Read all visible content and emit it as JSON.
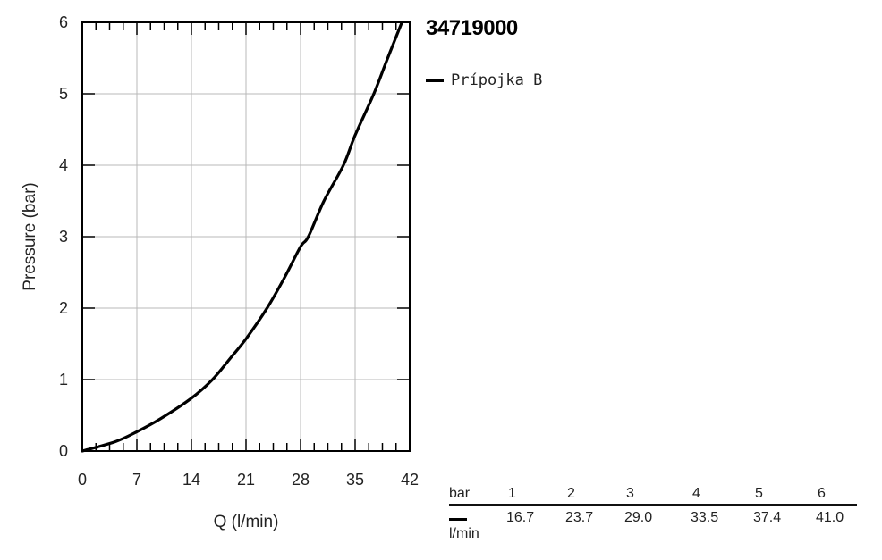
{
  "chart_data": {
    "type": "line",
    "title": "34719000",
    "xlabel": "Q (l/min)",
    "ylabel": "Pressure (bar)",
    "xlim": [
      0,
      42
    ],
    "ylim": [
      0,
      6
    ],
    "xticks": [
      "0",
      "7",
      "14",
      "21",
      "28",
      "35",
      "42"
    ],
    "yticks": [
      "0",
      "1",
      "2",
      "3",
      "4",
      "5",
      "6"
    ],
    "grid": true,
    "legend_position": "top-right",
    "series": [
      {
        "name": "Prípojka B",
        "color": "#000000",
        "x": [
          0,
          4.2,
          7,
          10,
          14,
          16.7,
          19,
          21,
          23.7,
          26,
          28,
          29,
          31,
          33.5,
          35,
          37.4,
          39,
          41
        ],
        "y": [
          0,
          0.13,
          0.27,
          0.45,
          0.74,
          1,
          1.3,
          1.57,
          2,
          2.44,
          2.86,
          3,
          3.5,
          4,
          4.42,
          5,
          5.45,
          6
        ]
      }
    ],
    "table": {
      "header_label": "bar",
      "unit_label": "l/min",
      "columns": [
        "1",
        "2",
        "3",
        "4",
        "5",
        "6"
      ],
      "values": [
        "16.7",
        "23.7",
        "29.0",
        "33.5",
        "37.4",
        "41.0"
      ]
    }
  }
}
